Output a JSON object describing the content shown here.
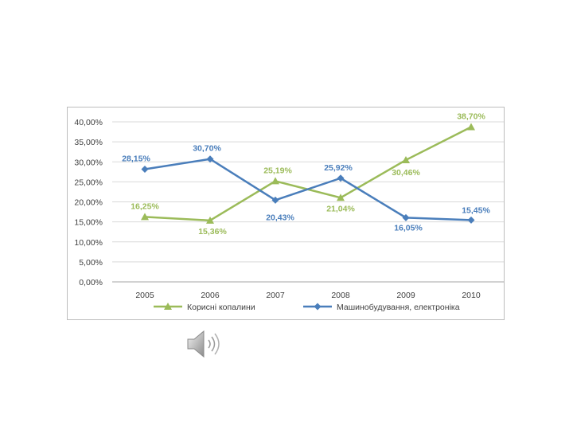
{
  "chart_data": {
    "type": "line",
    "title": "",
    "xlabel": "",
    "ylabel": "",
    "categories": [
      "2005",
      "2006",
      "2007",
      "2008",
      "2009",
      "2010"
    ],
    "ylim": [
      0,
      40
    ],
    "ytick_step": 5,
    "ytick_labels": [
      "0,00%",
      "5,00%",
      "10,00%",
      "15,00%",
      "20,00%",
      "25,00%",
      "30,00%",
      "35,00%",
      "40,00%"
    ],
    "grid": true,
    "legend_position": "bottom",
    "series": [
      {
        "name": "Корисні копалини",
        "color": "#9bbb59",
        "marker": "triangle",
        "values": [
          16.25,
          15.36,
          25.19,
          21.04,
          30.46,
          38.7
        ],
        "labels": [
          "16,25%",
          "15,36%",
          "25,19%",
          "21,04%",
          "30,46%",
          "38,70%"
        ]
      },
      {
        "name": "Машинобудування, електроніка",
        "color": "#4a7ebb",
        "marker": "diamond",
        "values": [
          28.15,
          30.7,
          20.43,
          25.92,
          16.05,
          15.45
        ],
        "labels": [
          "28,15%",
          "30,70%",
          "20,43%",
          "25,92%",
          "16,05%",
          "15,45%"
        ]
      }
    ]
  },
  "speaker_icon": "speaker-icon"
}
